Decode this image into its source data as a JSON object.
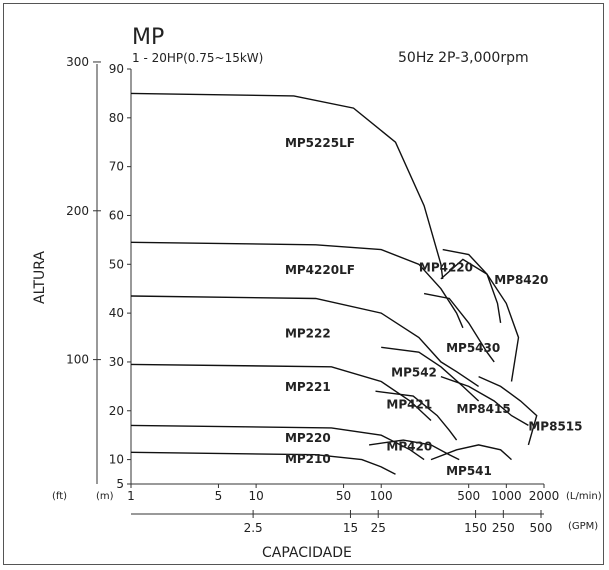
{
  "chart_data": {
    "type": "line",
    "title": "MP",
    "subtitle": "1 - 20HP(0.75~15kW)",
    "condition": "50Hz 2P-3,000rpm",
    "ylabel": "ALTURA",
    "xlabel": "CAPACIDADE",
    "xscale": "log",
    "ylim_m": [
      5,
      90
    ],
    "xlim_lpm": [
      1,
      2000
    ],
    "y_m_ticks": [
      "5",
      "10",
      "20",
      "30",
      "40",
      "50",
      "60",
      "70",
      "80",
      "90"
    ],
    "y_m_values": [
      5,
      10,
      20,
      30,
      40,
      50,
      60,
      70,
      80,
      90
    ],
    "y_ft_ticks": [
      "100",
      "200",
      "300"
    ],
    "y_ft_values": [
      100,
      200,
      300
    ],
    "y_ft_unit": "(ft)",
    "y_m_unit": "(m)",
    "x_lpm_ticks": [
      "1",
      "5",
      "10",
      "50",
      "100",
      "500",
      "1000",
      "2000"
    ],
    "x_lpm_values": [
      1,
      5,
      10,
      50,
      100,
      500,
      1000,
      2000
    ],
    "x_lpm_unit": "(L/min)",
    "x_gpm_ticks": [
      "2.5",
      "15",
      "25",
      "150",
      "250",
      "500"
    ],
    "x_gpm_values": [
      2.5,
      15,
      25,
      150,
      250,
      500
    ],
    "x_gpm_unit": "(GPM)",
    "series": [
      {
        "name": "MP5225LF",
        "points": [
          [
            1,
            85
          ],
          [
            20,
            84.5
          ],
          [
            60,
            82
          ],
          [
            130,
            75
          ],
          [
            220,
            62
          ],
          [
            300,
            50
          ],
          [
            310,
            47
          ]
        ],
        "label_at": [
          17,
          74
        ]
      },
      {
        "name": "MP4220LF",
        "points": [
          [
            1,
            54.5
          ],
          [
            30,
            54
          ],
          [
            100,
            53
          ],
          [
            200,
            50
          ],
          [
            300,
            45
          ],
          [
            400,
            40
          ],
          [
            450,
            37
          ]
        ],
        "label_at": [
          17,
          48
        ]
      },
      {
        "name": "MP222",
        "points": [
          [
            1,
            43.5
          ],
          [
            30,
            43
          ],
          [
            100,
            40
          ],
          [
            200,
            35
          ],
          [
            300,
            30
          ],
          [
            400,
            28
          ],
          [
            600,
            25
          ]
        ],
        "label_at": [
          17,
          35
        ]
      },
      {
        "name": "MP221",
        "points": [
          [
            1,
            29.5
          ],
          [
            40,
            29
          ],
          [
            100,
            26
          ],
          [
            170,
            22
          ],
          [
            250,
            18
          ]
        ],
        "label_at": [
          17,
          24
        ]
      },
      {
        "name": "MP220",
        "points": [
          [
            1,
            17
          ],
          [
            40,
            16.5
          ],
          [
            100,
            15
          ],
          [
            170,
            12
          ],
          [
            220,
            10
          ]
        ],
        "label_at": [
          17,
          13.6
        ]
      },
      {
        "name": "MP210",
        "points": [
          [
            1,
            11.5
          ],
          [
            30,
            11
          ],
          [
            70,
            10
          ],
          [
            100,
            8.5
          ],
          [
            130,
            7
          ]
        ],
        "label_at": [
          17,
          9.3
        ]
      },
      {
        "name": "MP4220",
        "points": [
          [
            310,
            53
          ],
          [
            500,
            52
          ],
          [
            700,
            48
          ],
          [
            850,
            42
          ],
          [
            900,
            38
          ]
        ],
        "label_at": [
          200,
          48.5
        ]
      },
      {
        "name": "MP8420",
        "points": [
          [
            300,
            47
          ],
          [
            450,
            51
          ],
          [
            700,
            48
          ],
          [
            1000,
            42
          ],
          [
            1250,
            35
          ],
          [
            1100,
            26
          ]
        ],
        "label_at": [
          800,
          46
        ]
      },
      {
        "name": "MP5430",
        "points": [
          [
            220,
            44
          ],
          [
            350,
            43
          ],
          [
            500,
            38
          ],
          [
            700,
            32
          ],
          [
            800,
            30
          ]
        ],
        "label_at": [
          330,
          32
        ]
      },
      {
        "name": "MP542",
        "points": [
          [
            100,
            33
          ],
          [
            200,
            32
          ],
          [
            300,
            29
          ],
          [
            450,
            25
          ],
          [
            600,
            22
          ]
        ],
        "label_at": [
          120,
          27
        ]
      },
      {
        "name": "MP421",
        "points": [
          [
            90,
            24
          ],
          [
            180,
            23
          ],
          [
            280,
            19
          ],
          [
            350,
            16
          ],
          [
            400,
            14
          ]
        ],
        "label_at": [
          110,
          20.5
        ]
      },
      {
        "name": "MP8415",
        "points": [
          [
            300,
            27
          ],
          [
            500,
            25
          ],
          [
            800,
            22
          ],
          [
            1100,
            19
          ],
          [
            1500,
            17
          ]
        ],
        "label_at": [
          400,
          19.5
        ]
      },
      {
        "name": "MP8515",
        "points": [
          [
            600,
            27
          ],
          [
            900,
            25
          ],
          [
            1300,
            22
          ],
          [
            1750,
            19
          ],
          [
            1500,
            13
          ]
        ],
        "label_at": [
          1500,
          16
        ]
      },
      {
        "name": "MP420",
        "points": [
          [
            80,
            13
          ],
          [
            150,
            14
          ],
          [
            250,
            13
          ],
          [
            350,
            11
          ],
          [
            420,
            10
          ]
        ],
        "label_at": [
          110,
          11.9
        ]
      },
      {
        "name": "MP541",
        "points": [
          [
            250,
            10
          ],
          [
            400,
            12
          ],
          [
            600,
            13
          ],
          [
            900,
            12
          ],
          [
            1100,
            10
          ]
        ],
        "label_at": [
          330,
          6.8
        ]
      }
    ]
  }
}
